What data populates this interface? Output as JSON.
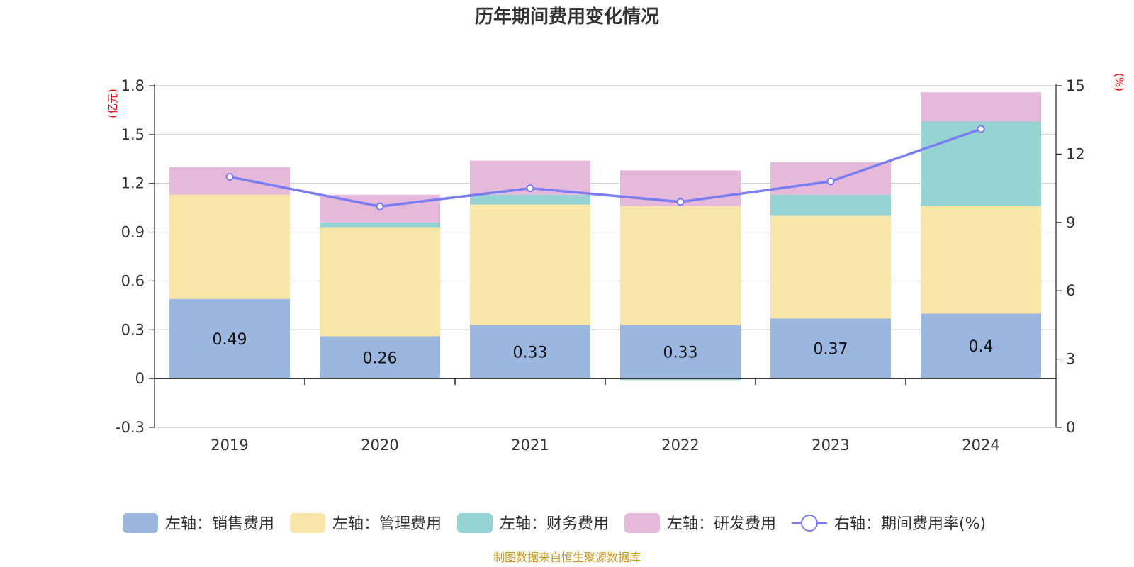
{
  "chart_data": {
    "type": "bar",
    "stacked": true,
    "title": "历年期间费用变化情况",
    "categories": [
      "2019",
      "2020",
      "2021",
      "2022",
      "2023",
      "2024"
    ],
    "left_axis": {
      "unit": "(亿元)",
      "ylim": [
        -0.3,
        1.8
      ],
      "ticks": [
        "-0.3",
        "0",
        "0.3",
        "0.6",
        "0.9",
        "1.2",
        "1.5",
        "1.8"
      ]
    },
    "right_axis": {
      "unit": "(%)",
      "ylim": [
        0,
        15
      ],
      "ticks": [
        "0",
        "3",
        "6",
        "9",
        "12",
        "15"
      ]
    },
    "series": [
      {
        "name": "左轴：销售费用",
        "axis": "left",
        "color": "#9bb7e0",
        "values": [
          0.49,
          0.26,
          0.33,
          0.33,
          0.37,
          0.4
        ],
        "labels": [
          "0.49",
          "0.26",
          "0.33",
          "0.33",
          "0.37",
          "0.4"
        ]
      },
      {
        "name": "左轴：管理费用",
        "axis": "left",
        "color": "#f8e6a8",
        "values": [
          0.64,
          0.67,
          0.74,
          0.73,
          0.63,
          0.66
        ]
      },
      {
        "name": "左轴：财务费用",
        "axis": "left",
        "color": "#96d3d3",
        "values": [
          0.0,
          0.03,
          0.06,
          -0.01,
          0.13,
          0.52
        ]
      },
      {
        "name": "左轴：研发费用",
        "axis": "left",
        "color": "#e6b9da",
        "values": [
          0.17,
          0.17,
          0.21,
          0.22,
          0.2,
          0.18
        ]
      },
      {
        "name": "右轴：期间费用率(%)",
        "axis": "right",
        "type": "line",
        "color": "#7a7ef0",
        "values": [
          11.0,
          9.7,
          10.5,
          9.9,
          10.8,
          13.1
        ]
      }
    ],
    "source_note": "制图数据来自恒生聚源数据库"
  }
}
